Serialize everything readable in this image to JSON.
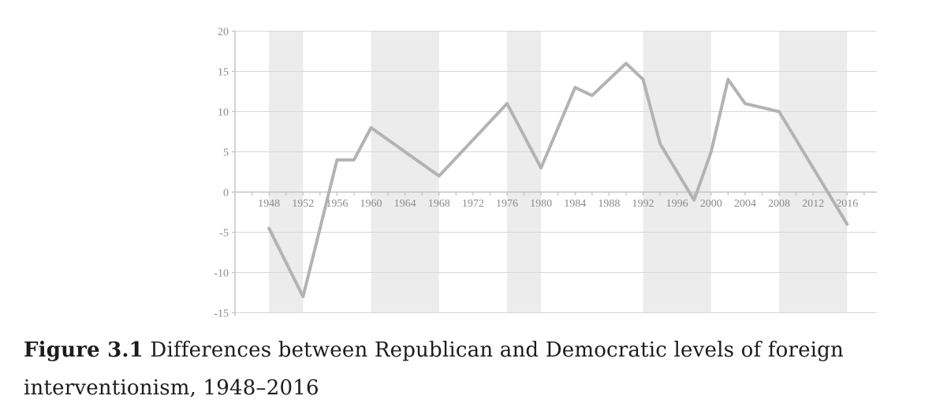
{
  "caption": {
    "figure_label": "Figure 3.1",
    "line1_rest": "Differences between Republican and Democratic levels of foreign",
    "line2": "interventionism, 1948–2016"
  },
  "chart_data": {
    "type": "line",
    "title": "",
    "xlabel": "",
    "ylabel": "",
    "x": [
      1948,
      1952,
      1956,
      1958,
      1960,
      1968,
      1976,
      1980,
      1984,
      1986,
      1990,
      1992,
      1994,
      1998,
      2000,
      2002,
      2004,
      2008,
      2016
    ],
    "y": [
      -4.5,
      -13,
      4,
      4,
      8,
      2,
      11,
      3,
      13,
      12,
      16,
      14,
      6,
      -1,
      5,
      14,
      11,
      10,
      -4
    ],
    "xlim": [
      1944,
      2019.5
    ],
    "ylim": [
      -15,
      20
    ],
    "y_ticks": [
      20,
      15,
      10,
      5,
      0,
      -5,
      -10,
      -15
    ],
    "y_tick_labels": [
      "20",
      "15",
      "10",
      "5",
      "0",
      "-5",
      "-10",
      "-15"
    ],
    "x_tick_start": 1946,
    "x_tick_end": 2018,
    "x_tick_step": 2,
    "x_label_years": [
      1948,
      1952,
      1956,
      1960,
      1964,
      1968,
      1972,
      1976,
      1980,
      1984,
      1988,
      1992,
      1996,
      2000,
      2004,
      2008,
      2012,
      2016
    ],
    "shaded_bands": [
      [
        1948,
        1952
      ],
      [
        1960,
        1968
      ],
      [
        1976,
        1980
      ],
      [
        1992,
        2000
      ],
      [
        2008,
        2016
      ]
    ],
    "grid": true,
    "legend_position": "none",
    "colors": {
      "line": "#b3b3b3",
      "band": "#ececec",
      "gridline": "#d8d8d8",
      "axis": "#c2c2c2",
      "tick_label": "#8a8a8a",
      "caption_text": "#1c1c1c",
      "background": "#ffffff"
    }
  }
}
